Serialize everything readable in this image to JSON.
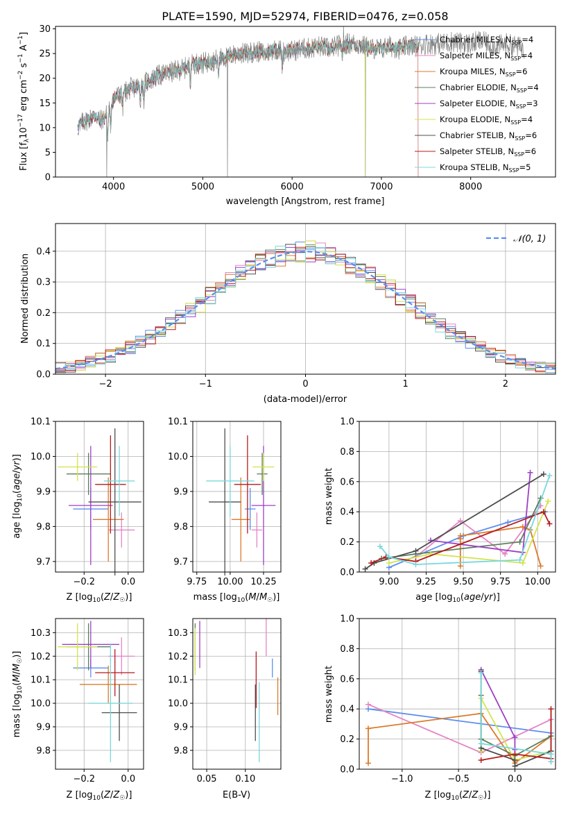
{
  "chart_data": [
    {
      "id": "spectrum",
      "type": "line",
      "title": "PLATE=1590, MJD=52974, FIBERID=0476, z=0.058",
      "xlabel": "wavelength [Angstrom, rest frame]",
      "ylabel": "Flux [f_λ 10^-17 erg cm^-2 s^-1 A^-1]",
      "xlim": [
        3350,
        8950
      ],
      "ylim": [
        0,
        30.5
      ],
      "xticks": [
        4000,
        5000,
        6000,
        7000,
        8000
      ],
      "yticks": [
        0,
        5,
        10,
        15,
        20,
        25,
        30
      ],
      "grid": false,
      "legend_position": "top-right",
      "continuum": {
        "x": [
          3600,
          3650,
          3700,
          3750,
          3800,
          3850,
          3900,
          3950,
          4000,
          4100,
          4200,
          4300,
          4400,
          4500,
          4600,
          4700,
          4800,
          4900,
          5000,
          5100,
          5200,
          5300,
          5400,
          5500,
          5600,
          5700,
          5800,
          5900,
          6000,
          6100,
          6200,
          6300,
          6400,
          6500,
          6600,
          6700,
          6800,
          6900,
          7000,
          7100,
          7200,
          7300,
          7400,
          7500,
          7600,
          7700,
          7800,
          7900,
          8000,
          8100,
          8200,
          8300,
          8400,
          8500,
          8600
        ],
        "y": [
          10,
          11,
          11.5,
          12,
          12.5,
          11.5,
          12,
          14,
          16,
          17,
          18,
          18.5,
          19.5,
          20.5,
          21,
          21.5,
          22,
          23,
          23,
          23.5,
          24,
          24.5,
          25,
          25,
          25.5,
          25,
          26,
          25.5,
          25.5,
          26,
          26,
          26.5,
          26,
          26.5,
          27,
          27,
          26.5,
          26,
          26,
          26.5,
          26,
          26.5,
          26.5,
          27,
          27,
          27,
          27.5,
          27,
          27,
          27.5,
          27,
          26.5,
          27,
          26.5,
          26
        ]
      },
      "series": [
        {
          "name": "Chabrier MILES, N_SSP=4",
          "color": "#5b8def"
        },
        {
          "name": "Salpeter MILES, N_SSP=4",
          "color": "#e584c5"
        },
        {
          "name": "Kroupa MILES, N_SSP=6",
          "color": "#dc7a2a"
        },
        {
          "name": "Chabrier ELODIE, N_SSP=4",
          "color": "#5a7f59"
        },
        {
          "name": "Salpeter ELODIE, N_SSP=3",
          "color": "#9d3fc6"
        },
        {
          "name": "Kroupa ELODIE, N_SSP=4",
          "color": "#d4e34a"
        },
        {
          "name": "Chabrier STELIB, N_SSP=6",
          "color": "#4d4d4d"
        },
        {
          "name": "Salpeter STELIB, N_SSP=6",
          "color": "#b51b1b"
        },
        {
          "name": "Kroupa STELIB, N_SSP=5",
          "color": "#78d8dc"
        }
      ]
    },
    {
      "id": "residuals",
      "type": "histogram",
      "xlabel": "(data-model)/error",
      "ylabel": "Normed distribution",
      "xlim": [
        -2.5,
        2.5
      ],
      "ylim": [
        0,
        0.49
      ],
      "xticks": [
        -2,
        -1,
        0,
        1,
        2
      ],
      "yticks": [
        0.0,
        0.1,
        0.2,
        0.3,
        0.4
      ],
      "grid": true,
      "legend_position": "top-right",
      "reference_curve": {
        "name": "𝒩(0, 1)",
        "color": "#5b8def"
      },
      "bin_width": 0.1
    },
    {
      "id": "age-vs-Z",
      "type": "errorbar",
      "xlabel": "Z [log10(Z/Z☉)]",
      "ylabel": "age  [log10(age/yr)]",
      "xlim": [
        -0.33,
        0.07
      ],
      "ylim": [
        9.67,
        10.1
      ],
      "xticks": [
        -0.2,
        0.0
      ],
      "yticks": [
        9.7,
        9.8,
        9.9,
        10.0,
        10.1
      ],
      "grid": true,
      "points": [
        {
          "x": -0.17,
          "xerr": 0.08,
          "y": 9.85,
          "yerr": 0.06
        },
        {
          "x": -0.03,
          "xerr": 0.06,
          "y": 9.79,
          "yerr": 0.05
        },
        {
          "x": -0.09,
          "xerr": 0.07,
          "y": 9.82,
          "yerr": 0.12
        },
        {
          "x": -0.18,
          "xerr": 0.1,
          "y": 9.95,
          "yerr": 0.06
        },
        {
          "x": -0.17,
          "xerr": 0.1,
          "y": 9.86,
          "yerr": 0.17
        },
        {
          "x": -0.23,
          "xerr": 0.09,
          "y": 9.97,
          "yerr": 0.04
        },
        {
          "x": -0.06,
          "xerr": 0.12,
          "y": 9.87,
          "yerr": 0.21
        },
        {
          "x": -0.08,
          "xerr": 0.07,
          "y": 9.92,
          "yerr": 0.14
        },
        {
          "x": -0.04,
          "xerr": 0.07,
          "y": 9.93,
          "yerr": 0.1
        }
      ]
    },
    {
      "id": "age-vs-mass",
      "type": "errorbar",
      "xlabel": "mass [log10(M/M☉)]",
      "yticks": [
        9.7,
        9.8,
        9.9,
        10.0,
        10.1
      ],
      "xlim": [
        9.72,
        10.38
      ],
      "ylim": [
        9.67,
        10.1
      ],
      "xticks": [
        9.75,
        10.0,
        10.25
      ],
      "grid": true,
      "points": [
        {
          "x": 10.15,
          "xerr": 0.04,
          "y": 9.85,
          "yerr": 0.06
        },
        {
          "x": 10.2,
          "xerr": 0.04,
          "y": 9.79,
          "yerr": 0.05
        },
        {
          "x": 10.08,
          "xerr": 0.07,
          "y": 9.82,
          "yerr": 0.12
        },
        {
          "x": 10.24,
          "xerr": 0.04,
          "y": 9.95,
          "yerr": 0.06
        },
        {
          "x": 10.25,
          "xerr": 0.09,
          "y": 9.86,
          "yerr": 0.17
        },
        {
          "x": 10.25,
          "xerr": 0.08,
          "y": 9.97,
          "yerr": 0.04
        },
        {
          "x": 9.96,
          "xerr": 0.12,
          "y": 9.87,
          "yerr": 0.21
        },
        {
          "x": 10.13,
          "xerr": 0.1,
          "y": 9.92,
          "yerr": 0.14
        },
        {
          "x": 10.0,
          "xerr": 0.18,
          "y": 9.93,
          "yerr": 0.1
        }
      ]
    },
    {
      "id": "age-weights",
      "type": "line",
      "xlabel": "age  [log10(age/yr)]",
      "ylabel": "mass weight",
      "xlim": [
        8.8,
        10.12
      ],
      "ylim": [
        0,
        1
      ],
      "xticks": [
        9.0,
        9.25,
        9.5,
        9.75,
        10.0
      ],
      "yticks": [
        0.0,
        0.2,
        0.4,
        0.6,
        0.8,
        1.0
      ],
      "grid": true,
      "series": [
        {
          "color": "#5b8def",
          "x": [
            9.0,
            9.5,
            9.8,
            10.05
          ],
          "y": [
            0.03,
            0.24,
            0.33,
            0.4
          ]
        },
        {
          "color": "#e584c5",
          "x": [
            9.18,
            9.48,
            9.78,
            10.02
          ],
          "y": [
            0.1,
            0.34,
            0.12,
            0.44
          ]
        },
        {
          "color": "#dc7a2a",
          "x": [
            9.48,
            9.48,
            9.48,
            9.9,
            9.95,
            10.02
          ],
          "y": [
            0.04,
            0.22,
            0.24,
            0.3,
            0.28,
            0.04
          ]
        },
        {
          "color": "#5a7f59",
          "x": [
            8.95,
            9.18,
            9.88,
            10.02
          ],
          "y": [
            0.09,
            0.12,
            0.2,
            0.49
          ]
        },
        {
          "color": "#9d3fc6",
          "x": [
            9.28,
            9.9,
            9.95
          ],
          "y": [
            0.21,
            0.13,
            0.66
          ]
        },
        {
          "color": "#d4e34a",
          "x": [
            9.0,
            9.28,
            9.9,
            10.07
          ],
          "y": [
            0.06,
            0.12,
            0.06,
            0.47
          ]
        },
        {
          "color": "#4d4d4d",
          "x": [
            8.84,
            8.9,
            9.18,
            10.04
          ],
          "y": [
            0.02,
            0.06,
            0.14,
            0.65
          ]
        },
        {
          "color": "#b51b1b",
          "x": [
            8.88,
            8.98,
            9.18,
            10.04,
            10.08
          ],
          "y": [
            0.06,
            0.1,
            0.07,
            0.4,
            0.32
          ]
        },
        {
          "color": "#78d8dc",
          "x": [
            8.94,
            9.0,
            9.18,
            9.88,
            10.08
          ],
          "y": [
            0.17,
            0.1,
            0.05,
            0.08,
            0.64
          ]
        }
      ]
    },
    {
      "id": "mass-vs-Z",
      "type": "errorbar",
      "xlabel": "Z [log10(Z/Z☉)]",
      "ylabel": "mass [log10(M/M☉)]",
      "xlim": [
        -0.33,
        0.07
      ],
      "ylim": [
        9.72,
        10.36
      ],
      "xticks": [
        -0.2,
        0.0
      ],
      "yticks": [
        9.8,
        9.9,
        10.0,
        10.1,
        10.2,
        10.3
      ],
      "grid": true,
      "points": [
        {
          "x": -0.17,
          "xerr": 0.08,
          "y": 10.15,
          "yerr": 0.04
        },
        {
          "x": -0.03,
          "xerr": 0.06,
          "y": 10.2,
          "yerr": 0.08
        },
        {
          "x": -0.09,
          "xerr": 0.13,
          "y": 10.08,
          "yerr": 0.08
        },
        {
          "x": -0.18,
          "xerr": 0.1,
          "y": 10.24,
          "yerr": 0.1
        },
        {
          "x": -0.17,
          "xerr": 0.13,
          "y": 10.25,
          "yerr": 0.1
        },
        {
          "x": -0.23,
          "xerr": 0.09,
          "y": 10.24,
          "yerr": 0.1
        },
        {
          "x": -0.04,
          "xerr": 0.08,
          "y": 9.96,
          "yerr": 0.12
        },
        {
          "x": -0.06,
          "xerr": 0.09,
          "y": 10.13,
          "yerr": 0.1
        },
        {
          "x": -0.08,
          "xerr": 0.1,
          "y": 10.0,
          "yerr": 0.25
        }
      ]
    },
    {
      "id": "mass-vs-ebv",
      "type": "errorbar",
      "xlabel": "E(B-V)",
      "xlim": [
        0.032,
        0.146
      ],
      "ylim": [
        9.72,
        10.36
      ],
      "xticks": [
        0.05,
        0.1
      ],
      "yticks": [
        9.8,
        9.9,
        10.0,
        10.1,
        10.2,
        10.3
      ],
      "grid": true,
      "points": [
        {
          "x": 0.135,
          "xerr": 0,
          "y": 10.15,
          "yerr": 0.04
        },
        {
          "x": 0.127,
          "xerr": 0,
          "y": 10.28,
          "yerr": 0.08
        },
        {
          "x": 0.142,
          "xerr": 0,
          "y": 10.03,
          "yerr": 0.08
        },
        {
          "x": 0.035,
          "xerr": 0,
          "y": 10.24,
          "yerr": 0.1
        },
        {
          "x": 0.041,
          "xerr": 0,
          "y": 10.25,
          "yerr": 0.1
        },
        {
          "x": 0.035,
          "xerr": 0,
          "y": 10.22,
          "yerr": 0.1
        },
        {
          "x": 0.113,
          "xerr": 0,
          "y": 9.96,
          "yerr": 0.12
        },
        {
          "x": 0.114,
          "xerr": 0,
          "y": 10.1,
          "yerr": 0.12
        },
        {
          "x": 0.118,
          "xerr": 0,
          "y": 9.92,
          "yerr": 0.17
        }
      ]
    },
    {
      "id": "Z-weights",
      "type": "line",
      "xlabel": "Z [log10(Z/Z☉)]",
      "ylabel": "mass weight",
      "xlim": [
        -1.38,
        0.36
      ],
      "ylim": [
        0,
        1
      ],
      "xticks": [
        -1.0,
        -0.5,
        0.0
      ],
      "yticks": [
        0.0,
        0.2,
        0.4,
        0.6,
        0.8,
        1.0
      ],
      "grid": true,
      "series": [
        {
          "color": "#5b8def",
          "x": [
            -1.3,
            0.32
          ],
          "y": [
            0.4,
            0.24
          ]
        },
        {
          "color": "#e584c5",
          "x": [
            -1.3,
            -0.3,
            0.32,
            0.32
          ],
          "y": [
            0.43,
            0.11,
            0.33,
            0.05
          ]
        },
        {
          "color": "#dc7a2a",
          "x": [
            -1.3,
            -1.3,
            -0.3,
            0.0,
            0.32
          ],
          "y": [
            0.04,
            0.27,
            0.37,
            0.04,
            0.22
          ]
        },
        {
          "color": "#5a7f59",
          "x": [
            -0.3,
            -0.3,
            0.0,
            0.32
          ],
          "y": [
            0.49,
            0.2,
            0.09,
            0.22
          ]
        },
        {
          "color": "#9d3fc6",
          "x": [
            -0.3,
            0.0,
            0.0
          ],
          "y": [
            0.66,
            0.21,
            0.13
          ]
        },
        {
          "color": "#d4e34a",
          "x": [
            -0.3,
            -0.3,
            0.0,
            0.32
          ],
          "y": [
            0.12,
            0.47,
            0.06,
            0.12
          ]
        },
        {
          "color": "#4d4d4d",
          "x": [
            -0.3,
            -0.3,
            0.0,
            0.0,
            0.32
          ],
          "y": [
            0.65,
            0.14,
            0.06,
            0.02,
            0.12
          ]
        },
        {
          "color": "#b51b1b",
          "x": [
            -0.3,
            0.0,
            0.32,
            0.32
          ],
          "y": [
            0.06,
            0.1,
            0.07,
            0.4
          ]
        },
        {
          "color": "#78d8dc",
          "x": [
            -0.3,
            -0.3,
            0.32,
            0.32
          ],
          "y": [
            0.64,
            0.17,
            0.1,
            0.05
          ]
        }
      ]
    }
  ]
}
